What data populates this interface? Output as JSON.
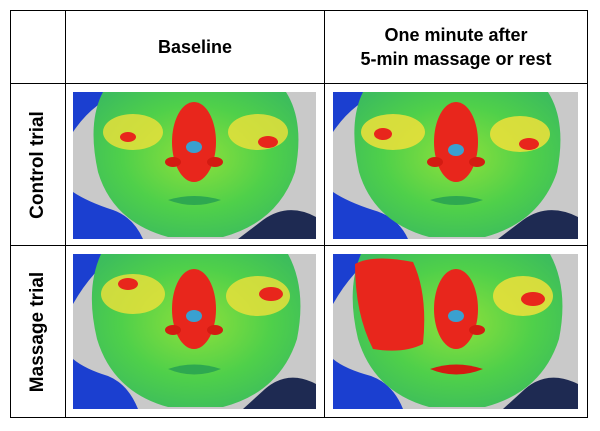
{
  "table": {
    "col_headers": [
      "Baseline",
      "One minute after",
      "5-min massage or rest"
    ],
    "row_headers": [
      "Control trial",
      "Massage trial"
    ]
  },
  "colors": {
    "background": "#c9c9c9",
    "face": "#4fd04a",
    "warm": "#f0e13a",
    "hot": "#e8261c",
    "cold": "#1b3fd0"
  }
}
